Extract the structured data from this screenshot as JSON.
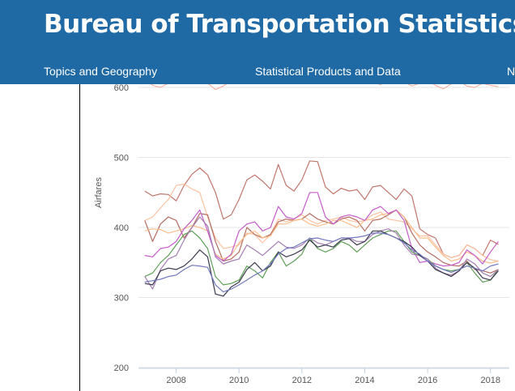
{
  "header": {
    "title": "Bureau of Transportation Statistics",
    "nav": [
      {
        "label": "Topics and Geography"
      },
      {
        "label": "Statistical Products and Data"
      },
      {
        "label": "N"
      }
    ],
    "background_color": "#1f6aa5"
  },
  "chart_data": {
    "type": "line",
    "ylabel": "Airfares",
    "xlabel": "",
    "ylim": [
      200,
      600
    ],
    "xlim": [
      2006.8,
      2018.6
    ],
    "y_ticks": [
      "200",
      "300",
      "400",
      "500",
      "600"
    ],
    "x_ticks": [
      "2008",
      "2010",
      "2012",
      "2014",
      "2016",
      "2018"
    ],
    "grid": "horizontal",
    "x": [
      2007.0,
      2007.25,
      2007.5,
      2007.75,
      2008.0,
      2008.25,
      2008.5,
      2008.75,
      2009.0,
      2009.25,
      2009.5,
      2009.75,
      2010.0,
      2010.25,
      2010.5,
      2010.75,
      2011.0,
      2011.25,
      2011.5,
      2011.75,
      2012.0,
      2012.25,
      2012.5,
      2012.75,
      2013.0,
      2013.25,
      2013.5,
      2013.75,
      2014.0,
      2014.25,
      2014.5,
      2014.75,
      2015.0,
      2015.25,
      2015.5,
      2015.75,
      2016.0,
      2016.25,
      2016.5,
      2016.75,
      2017.0,
      2017.25,
      2017.5,
      2017.75,
      2018.0,
      2018.25
    ],
    "series": [
      {
        "color": "#f4b3a6",
        "values": [
          612,
          603,
          600,
          606,
          611,
          622,
          618,
          612,
          606,
          597,
          602,
          610,
          615,
          619,
          612,
          607,
          620,
          625,
          614,
          618,
          623,
          617,
          609,
          613,
          619,
          614,
          610,
          616,
          612,
          608,
          604,
          611,
          614,
          608,
          602,
          606,
          610,
          603,
          598,
          605,
          609,
          602,
          600,
          606,
          603,
          601
        ]
      },
      {
        "color": "#c1756b",
        "values": [
          452,
          445,
          448,
          447,
          438,
          460,
          476,
          485,
          475,
          450,
          412,
          418,
          440,
          468,
          475,
          466,
          455,
          490,
          460,
          452,
          468,
          495,
          494,
          458,
          448,
          456,
          452,
          454,
          440,
          458,
          460,
          450,
          440,
          455,
          445,
          398,
          390,
          385,
          362,
          357,
          360,
          375,
          370,
          360,
          382,
          376
        ]
      },
      {
        "color": "#fcc2a2",
        "values": [
          410,
          415,
          428,
          440,
          460,
          462,
          455,
          450,
          415,
          385,
          370,
          372,
          375,
          392,
          390,
          378,
          390,
          412,
          408,
          412,
          418,
          410,
          405,
          410,
          412,
          415,
          410,
          408,
          410,
          418,
          422,
          412,
          410,
          408,
          398,
          388,
          388,
          375,
          362,
          357,
          360,
          375,
          370,
          360,
          354,
          352
        ]
      },
      {
        "color": "#b36c5f",
        "values": [
          410,
          380,
          405,
          415,
          410,
          385,
          400,
          420,
          418,
          380,
          352,
          355,
          365,
          400,
          390,
          385,
          390,
          408,
          412,
          410,
          412,
          420,
          412,
          408,
          405,
          412,
          415,
          410,
          395,
          410,
          412,
          418,
          425,
          415,
          392,
          375,
          365,
          358,
          350,
          346,
          345,
          352,
          340,
          338,
          335,
          340
        ]
      },
      {
        "color": "#fdbd8b",
        "values": [
          395,
          398,
          397,
          392,
          395,
          398,
          403,
          400,
          395,
          362,
          355,
          360,
          378,
          390,
          395,
          385,
          388,
          405,
          405,
          410,
          412,
          405,
          402,
          405,
          410,
          410,
          405,
          400,
          410,
          412,
          418,
          420,
          425,
          415,
          400,
          385,
          385,
          372,
          360,
          352,
          355,
          365,
          360,
          352,
          349,
          352
        ]
      },
      {
        "color": "#c45cc9",
        "values": [
          360,
          358,
          370,
          372,
          380,
          398,
          410,
          425,
          395,
          360,
          352,
          362,
          395,
          405,
          408,
          395,
          400,
          430,
          415,
          412,
          420,
          450,
          450,
          415,
          405,
          415,
          418,
          415,
          410,
          425,
          430,
          420,
          425,
          410,
          370,
          350,
          352,
          348,
          345,
          346,
          350,
          368,
          360,
          348,
          365,
          380
        ]
      },
      {
        "color": "#5e9f57",
        "values": [
          330,
          335,
          350,
          360,
          375,
          390,
          395,
          385,
          370,
          330,
          318,
          320,
          325,
          345,
          338,
          328,
          350,
          365,
          345,
          352,
          362,
          385,
          370,
          365,
          370,
          380,
          375,
          365,
          375,
          385,
          390,
          395,
          395,
          380,
          365,
          360,
          355,
          345,
          340,
          338,
          340,
          350,
          335,
          322,
          325,
          340
        ]
      },
      {
        "color": "#a57eb2",
        "values": [
          330,
          312,
          340,
          355,
          360,
          382,
          400,
          415,
          402,
          358,
          348,
          352,
          355,
          375,
          368,
          360,
          370,
          380,
          372,
          370,
          375,
          385,
          378,
          375,
          380,
          385,
          385,
          380,
          380,
          390,
          395,
          398,
          392,
          375,
          362,
          360,
          355,
          342,
          335,
          332,
          338,
          355,
          348,
          335,
          330,
          340
        ]
      },
      {
        "color": "#3a3a4e",
        "values": [
          320,
          318,
          338,
          342,
          340,
          345,
          355,
          368,
          358,
          305,
          302,
          315,
          322,
          340,
          350,
          338,
          345,
          365,
          358,
          362,
          368,
          382,
          372,
          375,
          372,
          382,
          384,
          375,
          380,
          395,
          395,
          390,
          385,
          380,
          372,
          360,
          352,
          340,
          335,
          330,
          338,
          350,
          342,
          328,
          325,
          338
        ]
      },
      {
        "color": "#7279bd",
        "values": [
          322,
          324,
          326,
          330,
          332,
          340,
          346,
          345,
          343,
          318,
          308,
          312,
          318,
          325,
          332,
          338,
          348,
          362,
          370,
          372,
          378,
          384,
          385,
          382,
          380,
          385,
          385,
          386,
          388,
          392,
          392,
          390,
          385,
          378,
          368,
          362,
          352,
          345,
          340,
          336,
          340,
          345,
          342,
          338,
          345,
          348
        ]
      }
    ]
  }
}
